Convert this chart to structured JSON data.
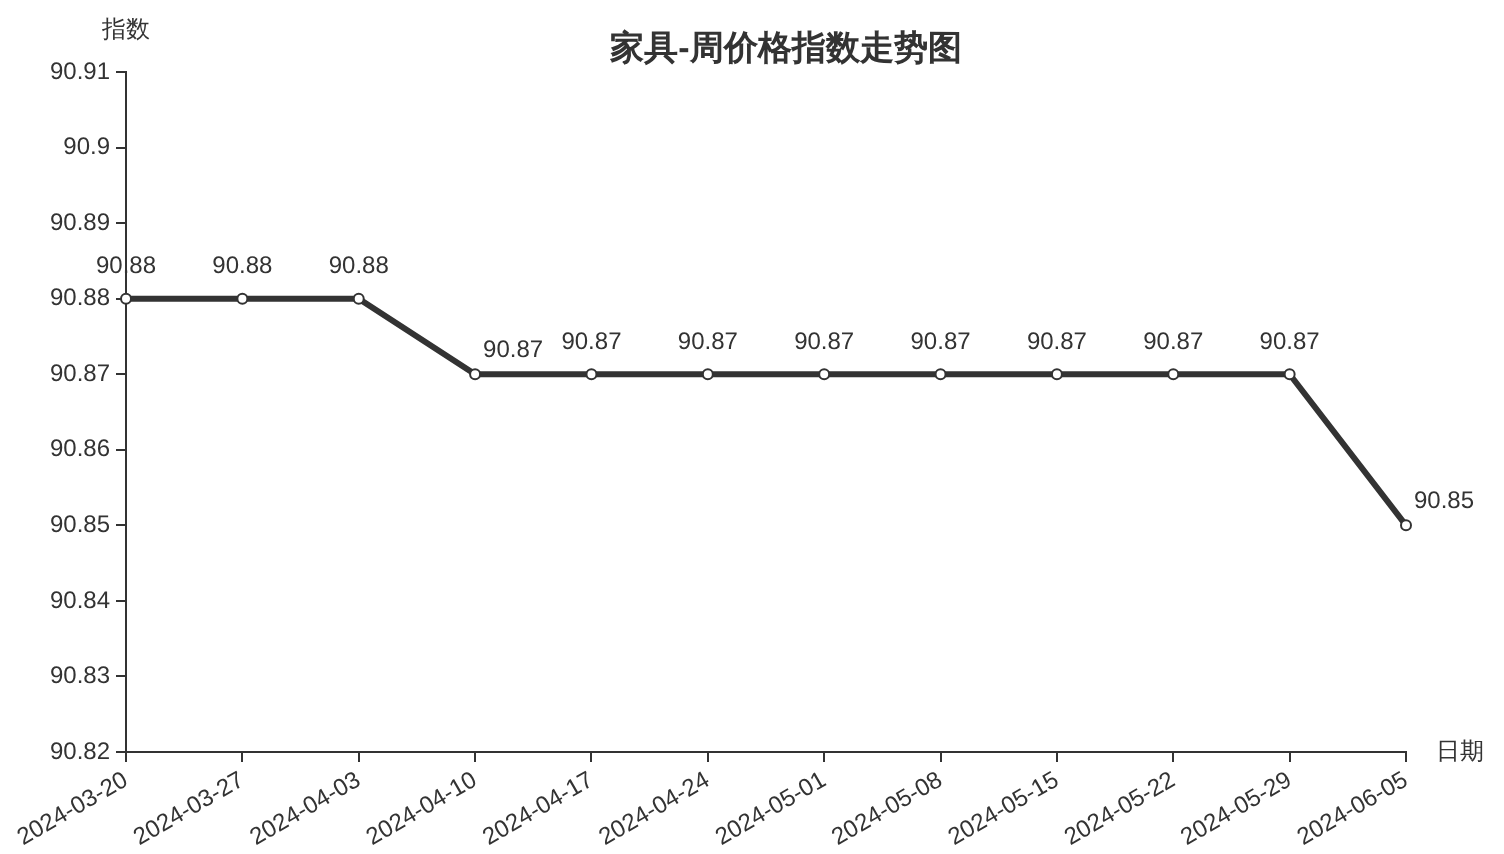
{
  "chart_data": {
    "type": "line",
    "title": "家具-周价格指数走势图",
    "xlabel": "日期",
    "ylabel": "指数",
    "categories": [
      "2024-03-20",
      "2024-03-27",
      "2024-04-03",
      "2024-04-10",
      "2024-04-17",
      "2024-04-24",
      "2024-05-01",
      "2024-05-08",
      "2024-05-15",
      "2024-05-22",
      "2024-05-29",
      "2024-06-05"
    ],
    "series": [
      {
        "color": "#333333",
        "values": [
          90.88,
          90.88,
          90.88,
          90.87,
          90.87,
          90.87,
          90.87,
          90.87,
          90.87,
          90.87,
          90.87,
          90.85
        ]
      }
    ],
    "ylim": [
      90.82,
      90.91
    ],
    "yticks": [
      90.82,
      90.83,
      90.84,
      90.85,
      90.86,
      90.87,
      90.88,
      90.89,
      90.9,
      90.91
    ],
    "grid": false,
    "marker": "circle",
    "data_labels": true
  }
}
